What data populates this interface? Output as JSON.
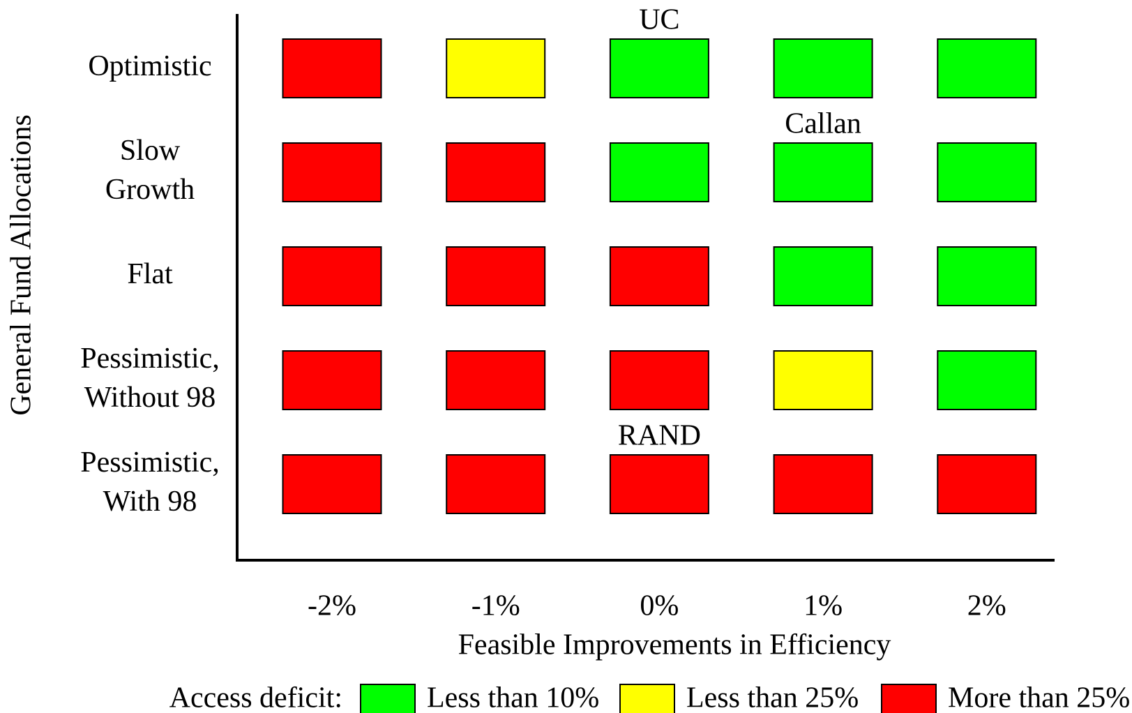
{
  "chart_data": {
    "type": "categorical-heatmap",
    "x_label": "Feasible Improvements in Efficiency",
    "y_label": "General Fund Allocations",
    "x_categories": [
      "-2%",
      "-1%",
      "0%",
      "1%",
      "2%"
    ],
    "y_categories": [
      [
        "Optimistic"
      ],
      [
        "Slow",
        "Growth"
      ],
      [
        "Flat"
      ],
      [
        "Pessimistic,",
        "Without 98"
      ],
      [
        "Pessimistic,",
        "With 98"
      ]
    ],
    "cells": [
      [
        "#ff0000",
        "#ffff00",
        "#00ff00",
        "#00ff00",
        "#00ff00"
      ],
      [
        "#ff0000",
        "#ff0000",
        "#00ff00",
        "#00ff00",
        "#00ff00"
      ],
      [
        "#ff0000",
        "#ff0000",
        "#ff0000",
        "#00ff00",
        "#00ff00"
      ],
      [
        "#ff0000",
        "#ff0000",
        "#ff0000",
        "#ffff00",
        "#00ff00"
      ],
      [
        "#ff0000",
        "#ff0000",
        "#ff0000",
        "#ff0000",
        "#ff0000"
      ]
    ],
    "annotations": [
      {
        "text": "UC",
        "x": "0%",
        "y": "Optimistic"
      },
      {
        "text": "Callan",
        "x": "1%",
        "y": "Slow"
      },
      {
        "text": "RAND",
        "x": "0%",
        "y": "Pessimistic,",
        "nth": 2
      }
    ],
    "legend_title": "Access deficit:",
    "legend": [
      {
        "label": "Less than 10%",
        "color": "#00ff00"
      },
      {
        "label": "Less than 25%",
        "color": "#ffff00"
      },
      {
        "label": "More than 25%",
        "color": "#ff0000"
      }
    ]
  }
}
